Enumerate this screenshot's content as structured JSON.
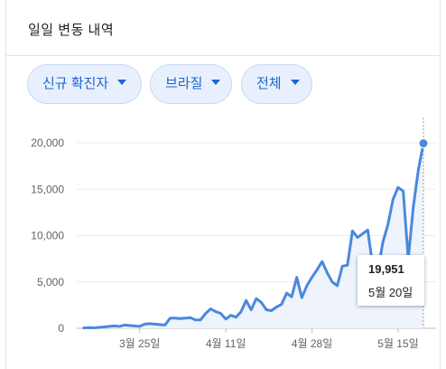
{
  "header": {
    "title": "일일 변동 내역"
  },
  "filters": [
    {
      "label": "신규 확진자"
    },
    {
      "label": "브라질"
    },
    {
      "label": "전체"
    }
  ],
  "colors": {
    "line": "#4a88dd",
    "chip_bg": "#e8f0fe",
    "chip_text": "#1a66d2"
  },
  "tooltip": {
    "value": "19,951",
    "date": "5월 20일"
  },
  "chart_data": {
    "type": "line",
    "title": "",
    "xlabel": "",
    "ylabel": "",
    "ylim": [
      0,
      20000
    ],
    "yticks": [
      0,
      5000,
      10000,
      15000,
      20000
    ],
    "ytick_labels": [
      "0",
      "5,000",
      "10,000",
      "15,000",
      "20,000"
    ],
    "xtick_labels": [
      "3월 25일",
      "4월 11일",
      "4월 28일",
      "5월 15일"
    ],
    "xtick_dates": [
      "03-25",
      "04-11",
      "04-28",
      "05-15"
    ],
    "x_start": "03-14",
    "x_end": "05-20",
    "grid": "horizontal",
    "series": [
      {
        "values": [
          50,
          80,
          50,
          100,
          150,
          200,
          250,
          200,
          350,
          300,
          250,
          200,
          450,
          500,
          450,
          400,
          350,
          1100,
          1100,
          1050,
          1100,
          1150,
          900,
          900,
          1600,
          2100,
          1800,
          1600,
          1000,
          1400,
          1200,
          1800,
          3000,
          2000,
          3200,
          2800,
          2000,
          1900,
          2300,
          2600,
          3800,
          3400,
          5500,
          3300,
          4600,
          5500,
          6300,
          7200,
          6000,
          5000,
          4600,
          6700,
          6800,
          10500,
          9800,
          10200,
          10600,
          6700,
          6200,
          9300,
          11200,
          13900,
          15200,
          14800,
          7500,
          13100,
          17100,
          19951
        ]
      }
    ],
    "highlight": {
      "date": "05-20",
      "value": 19951
    }
  }
}
